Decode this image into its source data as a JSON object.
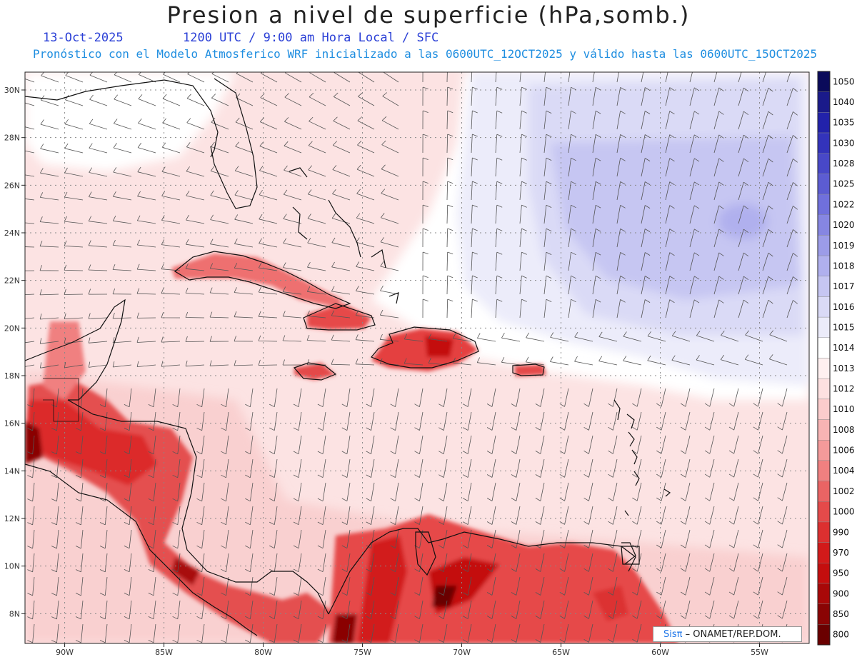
{
  "title": "Presion a nivel de superficie (hPa,somb.)",
  "date": "13-Oct-2025",
  "valid_time": "1200 UTC / 9:00 am Hora Local / SFC",
  "subtitle": "Pronóstico con el Modelo Atmosferico WRF inicializado a las 0600UTC_12OCT2025 y válido hasta las  0600UTC_15OCT2025",
  "credit": {
    "logo": "Sisπ",
    "text": " – ONAMET/REP.DOM."
  },
  "map": {
    "lon_range": [
      -92,
      -52.5
    ],
    "lat_range": [
      6.75,
      30.75
    ],
    "lon_labels": [
      "90W",
      "85W",
      "80W",
      "75W",
      "70W",
      "65W",
      "60W",
      "55W"
    ],
    "lat_labels": [
      "30N",
      "28N",
      "26N",
      "24N",
      "22N",
      "20N",
      "18N",
      "16N",
      "14N",
      "12N",
      "10N",
      "8N"
    ]
  },
  "colorbar": {
    "levels": [
      "1050",
      "1040",
      "1035",
      "1030",
      "1028",
      "1025",
      "1022",
      "1020",
      "1019",
      "1018",
      "1017",
      "1016",
      "1015",
      "1014",
      "1013",
      "1012",
      "1010",
      "1008",
      "1006",
      "1004",
      "1002",
      "1000",
      "990",
      "970",
      "950",
      "900",
      "850",
      "800"
    ],
    "colors": [
      "#0a0a5a",
      "#1a1a8a",
      "#2222aa",
      "#3333bb",
      "#4848c8",
      "#5c5cd2",
      "#7070dc",
      "#8686e2",
      "#9c9ce8",
      "#b0b0ee",
      "#c6c6f2",
      "#dadaf6",
      "#ececfa",
      "#ffffff",
      "#fff0f0",
      "#fde0e0",
      "#fbcccc",
      "#f8b4b4",
      "#f49a9a",
      "#f08080",
      "#ea6464",
      "#e44a4a",
      "#dc3030",
      "#d21a1a",
      "#c40e0e",
      "#a80808",
      "#8a0404",
      "#6a0000"
    ]
  }
}
